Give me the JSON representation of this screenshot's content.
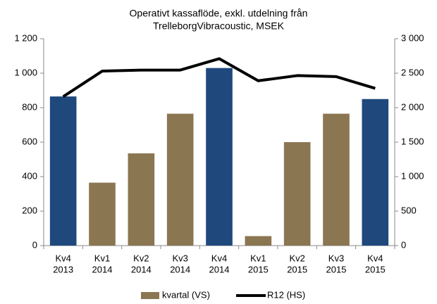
{
  "chart_data": {
    "type": "bar_line",
    "title": [
      "Operativt kassaflöde, exkl. utdelning från",
      "TrelleborgVibracoustic, MSEK"
    ],
    "categories": [
      [
        "Kv4",
        "2013"
      ],
      [
        "Kv1",
        "2014"
      ],
      [
        "Kv2",
        "2014"
      ],
      [
        "Kv3",
        "2014"
      ],
      [
        "Kv4",
        "2014"
      ],
      [
        "Kv1",
        "2015"
      ],
      [
        "Kv2",
        "2015"
      ],
      [
        "Kv3",
        "2015"
      ],
      [
        "Kv4",
        "2015"
      ]
    ],
    "series": [
      {
        "name": "kvartal (VS)",
        "type": "bar",
        "color": "#8b7652",
        "colors": [
          "#1f497d",
          "#8b7652",
          "#8b7652",
          "#8b7652",
          "#1f497d",
          "#8b7652",
          "#8b7652",
          "#8b7652",
          "#1f497d"
        ],
        "values": [
          865,
          365,
          535,
          765,
          1030,
          55,
          600,
          765,
          850
        ]
      },
      {
        "name": "R12 (HS)",
        "type": "line",
        "color": "#000000",
        "axis": "y2",
        "values": [
          2160,
          2530,
          2545,
          2545,
          2710,
          2390,
          2465,
          2450,
          2280
        ]
      }
    ],
    "ylim": [
      0,
      1200
    ],
    "yticks": [
      0,
      200,
      400,
      600,
      800,
      {
        "value": 1000,
        "label": "1 000"
      },
      {
        "value": 1200,
        "label": "1 200"
      }
    ],
    "y2lim": [
      0,
      3000
    ],
    "y2ticks": [
      0,
      500,
      {
        "value": 1000,
        "label": "1 000"
      },
      {
        "value": 1500,
        "label": "1 500"
      },
      {
        "value": 2000,
        "label": "2 000"
      },
      {
        "value": 2500,
        "label": "2 500"
      },
      {
        "value": 3000,
        "label": "3 000"
      }
    ],
    "grid": false,
    "legend": "bottom"
  }
}
